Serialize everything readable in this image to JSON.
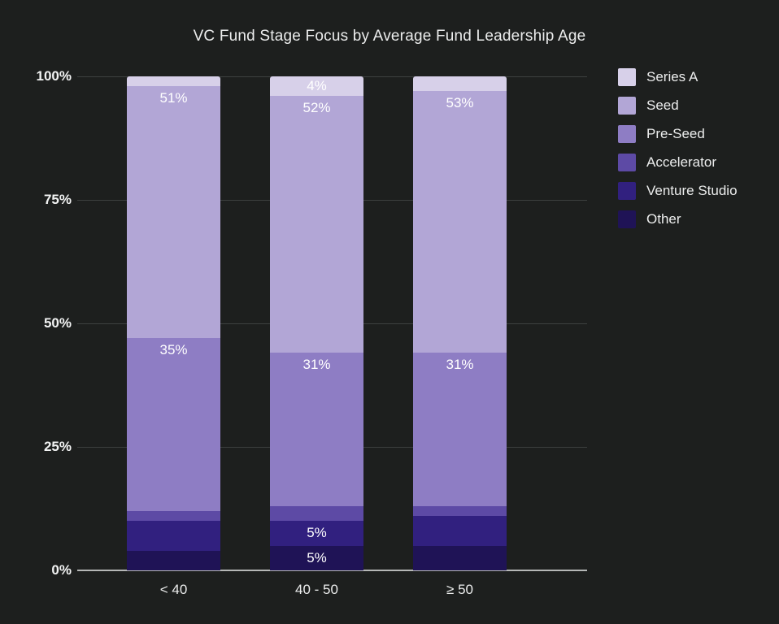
{
  "title": "VC Fund Stage Focus by Average Fund Leadership Age",
  "chart_data": {
    "type": "bar",
    "stacked": true,
    "title": "VC Fund Stage Focus by Average Fund Leadership Age",
    "categories": [
      "< 40",
      "40 - 50",
      "≥ 50"
    ],
    "series": [
      {
        "name": "Series A",
        "color": "#d7d0e9",
        "values": [
          2,
          4,
          3
        ],
        "labels": [
          "",
          "4%",
          ""
        ]
      },
      {
        "name": "Seed",
        "color": "#b2a6d6",
        "values": [
          51,
          52,
          53
        ],
        "labels": [
          "51%",
          "52%",
          "53%"
        ]
      },
      {
        "name": "Pre-Seed",
        "color": "#8e7dc4",
        "values": [
          35,
          31,
          31
        ],
        "labels": [
          "35%",
          "31%",
          "31%"
        ]
      },
      {
        "name": "Accelerator",
        "color": "#5d4aa5",
        "values": [
          2,
          3,
          2
        ],
        "labels": [
          "",
          "",
          ""
        ]
      },
      {
        "name": "Venture Studio",
        "color": "#31207f",
        "values": [
          6,
          5,
          6
        ],
        "labels": [
          "",
          "5%",
          ""
        ]
      },
      {
        "name": "Other",
        "color": "#1f1356",
        "values": [
          4,
          5,
          5
        ],
        "labels": [
          "",
          "5%",
          ""
        ]
      }
    ],
    "y_ticks": [
      "100%",
      "75%",
      "50%",
      "25%",
      "0%"
    ],
    "ylim": [
      0,
      100
    ],
    "xlabel": "",
    "ylabel": "",
    "grid": true,
    "legend_position": "right"
  },
  "colors": {
    "background": "#1d1f1e",
    "gridline": "#3d403f",
    "axis_line": "#b5b7b6",
    "text": "#eceded"
  }
}
